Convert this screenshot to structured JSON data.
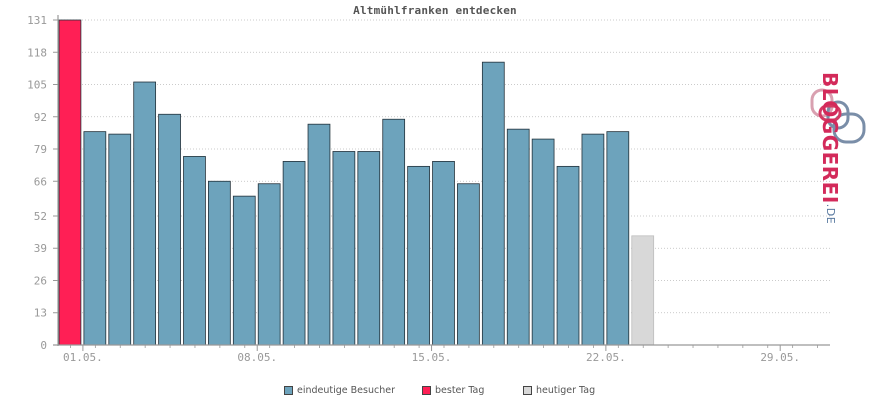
{
  "chart_data": {
    "type": "bar",
    "title": "Altmühlfranken entdecken",
    "yticks": [
      0,
      13,
      26,
      39,
      52,
      66,
      79,
      92,
      105,
      118,
      131
    ],
    "ylim": [
      0,
      131
    ],
    "xtick_labels": [
      "01.05.",
      "08.05.",
      "15.05.",
      "22.05.",
      "29.05."
    ],
    "xtick_days": [
      2,
      9,
      16,
      23,
      30
    ],
    "days": [
      1,
      2,
      3,
      4,
      5,
      6,
      7,
      8,
      9,
      10,
      11,
      12,
      13,
      14,
      15,
      16,
      17,
      18,
      19,
      20,
      21,
      22,
      23,
      24
    ],
    "values": [
      131,
      86,
      85,
      106,
      93,
      76,
      66,
      60,
      65,
      74,
      89,
      78,
      78,
      91,
      72,
      74,
      65,
      114,
      87,
      83,
      72,
      85,
      86,
      44
    ],
    "kinds": [
      "best",
      "visitors",
      "visitors",
      "visitors",
      "visitors",
      "visitors",
      "visitors",
      "visitors",
      "visitors",
      "visitors",
      "visitors",
      "visitors",
      "visitors",
      "visitors",
      "visitors",
      "visitors",
      "visitors",
      "visitors",
      "visitors",
      "visitors",
      "visitors",
      "visitors",
      "visitors",
      "today"
    ],
    "total_days": 31,
    "grid": true,
    "colors": {
      "visitors": "#6da3bc",
      "best": "#ff1f55",
      "today": "#d8d8d8",
      "grid": "#bbbbbb",
      "axis": "#999999"
    }
  },
  "legend": [
    {
      "key": "visitors",
      "label": "eindeutige Besucher",
      "color": "#6da3bc"
    },
    {
      "key": "best",
      "label": "bester Tag",
      "color": "#ff1f55"
    },
    {
      "key": "today",
      "label": "heutiger Tag",
      "color": "#d8d8d8"
    }
  ],
  "logo": {
    "brand": "BLOGGEREI",
    "tld": ".DE"
  }
}
